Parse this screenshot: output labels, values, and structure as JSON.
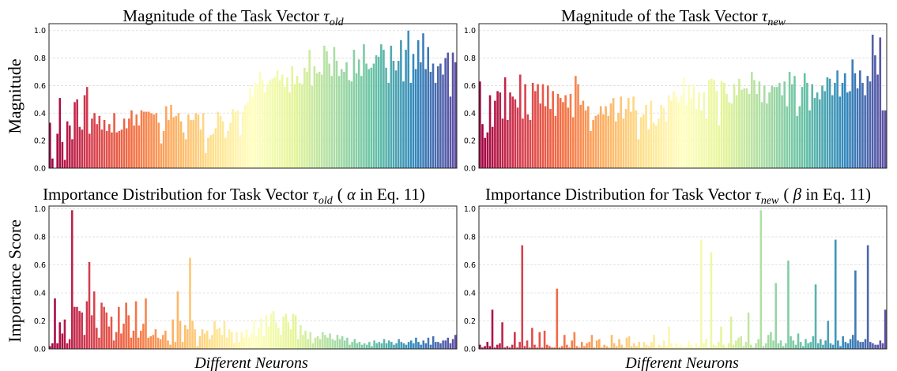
{
  "chart_data": [
    {
      "type": "bar",
      "title": "Magnitude of the Task Vector",
      "title_symbol": "τ",
      "title_subscript": "old",
      "xlabel": "",
      "ylabel": "Magnitude",
      "ylim": [
        0,
        1.05
      ],
      "yticks": [
        "0.0",
        "0.2",
        "0.4",
        "0.6",
        "0.8",
        "1.0"
      ],
      "grid": true,
      "colormap": "Spectral",
      "values": [
        0.33,
        0.07,
        0,
        0.25,
        0.51,
        0.19,
        0.06,
        0.34,
        0.31,
        0.21,
        0.48,
        0.5,
        0.3,
        0.28,
        0.53,
        0.59,
        0.25,
        0.36,
        0.4,
        0.32,
        0.38,
        0.28,
        0.35,
        0.27,
        0.32,
        0.26,
        0.4,
        0.26,
        0.27,
        0.28,
        0.36,
        0.29,
        0.36,
        0.42,
        0.31,
        0.39,
        0.31,
        0.42,
        0.41,
        0.41,
        0.41,
        0.4,
        0.39,
        0.4,
        0.33,
        0.18,
        0.27,
        0.45,
        0.35,
        0.46,
        0.37,
        0.38,
        0.4,
        0.34,
        0.26,
        0.21,
        0.39,
        0.35,
        0.35,
        0.4,
        0.39,
        0.28,
        0.4,
        0.11,
        0.22,
        0.24,
        0.25,
        0.29,
        0.41,
        0.38,
        0.34,
        0.22,
        0.27,
        0.33,
        0.43,
        0.41,
        0.42,
        0.24,
        0.41,
        0.46,
        0.48,
        0.58,
        0.52,
        0.62,
        0.61,
        0.7,
        0.64,
        0.55,
        0.61,
        0.64,
        0.65,
        0.66,
        0.71,
        0.64,
        0.68,
        0.59,
        0.66,
        0.55,
        0.74,
        0.61,
        0.67,
        0.62,
        0.61,
        0.73,
        0.7,
        0.86,
        0.6,
        0.74,
        0.69,
        0.7,
        0.68,
        0.89,
        0.85,
        0.76,
        0.67,
        0.88,
        0.78,
        0.67,
        0.72,
        0.7,
        0.77,
        0.64,
        0.63,
        0.86,
        0.69,
        0.79,
        0.67,
        0.9,
        0.76,
        0.72,
        0.73,
        0.76,
        0.82,
        0.81,
        0.9,
        0.86,
        0.73,
        0.62,
        0.89,
        0.78,
        0.71,
        0.78,
        0.93,
        0.63,
        0.86,
        1.0,
        0.62,
        0.83,
        0.72,
        0.93,
        0.77,
        0.98,
        0.72,
        0.88,
        0.7,
        0.76,
        0.62,
        0.74,
        0.76,
        0.68,
        0.8,
        0.84,
        0.52,
        0.84,
        0.77
      ]
    },
    {
      "type": "bar",
      "title": "Magnitude of the Task Vector",
      "title_symbol": "τ",
      "title_subscript": "new",
      "xlabel": "",
      "ylabel": "",
      "ylim": [
        0,
        1.05
      ],
      "yticks": [
        "0.0",
        "0.2",
        "0.4",
        "0.6",
        "0.8",
        "1.0"
      ],
      "grid": true,
      "colormap": "Spectral",
      "values": [
        0.63,
        0.32,
        0.22,
        0.26,
        0.53,
        0.3,
        0.49,
        0.56,
        0.55,
        0.36,
        0.66,
        0.35,
        0.55,
        0.52,
        0.5,
        0.44,
        0.68,
        0.36,
        0.61,
        0.39,
        0.35,
        0.62,
        0.56,
        0.61,
        0.47,
        0.61,
        0.45,
        0.6,
        0.43,
        0.56,
        0.38,
        0.54,
        0.51,
        0.48,
        0.53,
        0.44,
        0.54,
        0.37,
        0.67,
        0.61,
        0.46,
        0.49,
        0.42,
        0.45,
        0.27,
        0.35,
        0.38,
        0.39,
        0.45,
        0.39,
        0.45,
        0.38,
        0.47,
        0.51,
        0.34,
        0.4,
        0.52,
        0.36,
        0.43,
        0.51,
        0.41,
        0.52,
        0.42,
        0.21,
        0.37,
        0.39,
        0.46,
        0.28,
        0.49,
        0.33,
        0.31,
        0.36,
        0.46,
        0.44,
        0.34,
        0.53,
        0.49,
        0.56,
        0.52,
        0.48,
        0.53,
        0.66,
        0.46,
        0.6,
        0.51,
        0.61,
        0.43,
        0.55,
        0.42,
        0.55,
        0.36,
        0.64,
        0.65,
        0.64,
        0.56,
        0.31,
        0.63,
        0.62,
        0.54,
        0.48,
        0.47,
        0.61,
        0.53,
        0.65,
        0.57,
        0.58,
        0.58,
        0.54,
        0.7,
        0.64,
        0.54,
        0.63,
        0.48,
        0.6,
        0.47,
        0.55,
        0.6,
        0.59,
        0.59,
        0.62,
        0.53,
        0.63,
        0.45,
        0.7,
        0.61,
        0.67,
        0.38,
        0.45,
        0.59,
        0.69,
        0.62,
        0.42,
        0.61,
        0.51,
        0.55,
        0.5,
        0.6,
        0.56,
        0.66,
        0.65,
        0.53,
        0.62,
        0.71,
        0.52,
        0.62,
        0.69,
        0.55,
        0.56,
        0.79,
        0.69,
        0.58,
        0.71,
        0.62,
        0.53,
        0.67,
        0.63,
        0.97,
        0.82,
        0.68,
        0.95,
        0.42,
        0.42
      ]
    },
    {
      "type": "bar",
      "title": "Importance Distribution for Task Vector",
      "title_symbol": "τ",
      "title_subscript": "old",
      "title_suffix_open": "(",
      "title_greek": "α",
      "title_suffix_rest": "in Eq. 11)",
      "xlabel": "Different Neurons",
      "ylabel": "Importance Score",
      "ylim": [
        0,
        1.02
      ],
      "yticks": [
        "0.0",
        "0.2",
        "0.4",
        "0.6",
        "0.8",
        "1.0"
      ],
      "grid": true,
      "colormap": "Spectral",
      "values": [
        0.02,
        0.04,
        0.36,
        0.04,
        0.19,
        0.11,
        0.21,
        0.04,
        0.07,
        0.99,
        0.3,
        0.3,
        0.27,
        0.26,
        0.1,
        0.34,
        0.62,
        0.24,
        0.41,
        0.15,
        0.08,
        0.33,
        0.3,
        0.26,
        0.16,
        0.23,
        0.06,
        0.12,
        0.3,
        0.11,
        0.18,
        0.33,
        0.24,
        0.08,
        0.13,
        0.34,
        0.08,
        0.13,
        0.18,
        0.36,
        0.08,
        0.09,
        0.1,
        0.14,
        0.08,
        0.07,
        0.1,
        0.13,
        0.06,
        0.03,
        0.21,
        0.05,
        0.41,
        0.2,
        0.05,
        0.17,
        0.14,
        0.65,
        0.2,
        0.14,
        0.02,
        0.09,
        0.14,
        0.11,
        0.13,
        0.07,
        0.1,
        0.2,
        0.14,
        0.15,
        0.1,
        0.2,
        0.08,
        0.14,
        0.12,
        0.04,
        0.12,
        0.05,
        0.12,
        0.08,
        0.14,
        0.08,
        0.11,
        0.2,
        0.09,
        0.15,
        0.22,
        0.09,
        0.24,
        0.16,
        0.25,
        0.27,
        0.19,
        0.15,
        0.1,
        0.23,
        0.25,
        0.19,
        0.14,
        0.25,
        0.24,
        0.07,
        0.17,
        0.1,
        0.13,
        0.07,
        0.12,
        0.04,
        0.08,
        0.09,
        0.07,
        0.12,
        0.1,
        0.08,
        0.11,
        0.07,
        0.06,
        0.1,
        0.07,
        0.09,
        0.06,
        0.08,
        0.03,
        0.05,
        0.07,
        0.04,
        0.05,
        0.03,
        0.04,
        0.03,
        0.05,
        0.02,
        0.06,
        0.04,
        0.05,
        0.04,
        0.07,
        0.04,
        0.06,
        0.05,
        0.03,
        0.04,
        0.07,
        0.05,
        0.04,
        0.03,
        0.05,
        0.06,
        0.04,
        0.08,
        0.05,
        0.03,
        0.06,
        0.04,
        0.08,
        0.03,
        0.09,
        0.05,
        0.05,
        0.04,
        0.06,
        0.06,
        0.08,
        0.04,
        0.07,
        0.1
      ]
    },
    {
      "type": "bar",
      "title": "Importance Distribution for Task Vector",
      "title_symbol": "τ",
      "title_subscript": "new",
      "title_suffix_open": "(",
      "title_greek": "β",
      "title_suffix_rest": "in Eq. 11)",
      "xlabel": "Different Neurons",
      "ylabel": "",
      "ylim": [
        0,
        1.02
      ],
      "yticks": [
        "0.0",
        "0.2",
        "0.4",
        "0.6",
        "0.8",
        "1.0"
      ],
      "grid": true,
      "colormap": "Spectral",
      "values": [
        0.03,
        0.01,
        0.02,
        0.05,
        0.02,
        0.28,
        0.01,
        0.03,
        0.04,
        0.19,
        0.01,
        0.02,
        0.01,
        0.03,
        0.12,
        0.01,
        0.05,
        0.74,
        0.02,
        0.06,
        0.01,
        0.15,
        0.03,
        0.01,
        0.12,
        0.01,
        0.13,
        0.03,
        0.02,
        0.01,
        0.01,
        0.43,
        0.01,
        0.02,
        0.1,
        0.03,
        0.01,
        0.06,
        0.12,
        0.02,
        0.01,
        0.05,
        0.02,
        0.04,
        0.05,
        0.1,
        0.01,
        0.06,
        0.07,
        0.01,
        0.03,
        0.02,
        0.01,
        0.1,
        0.04,
        0.02,
        0.07,
        0.03,
        0.01,
        0.08,
        0.09,
        0.02,
        0.04,
        0.02,
        0.05,
        0.01,
        0.05,
        0.03,
        0.02,
        0.05,
        0.1,
        0.01,
        0.03,
        0.02,
        0.06,
        0.02,
        0.16,
        0.04,
        0.01,
        0.04,
        0.02,
        0.03,
        0.01,
        0.02,
        0.06,
        0.03,
        0.01,
        0.04,
        0.02,
        0.78,
        0.04,
        0.07,
        0.01,
        0.69,
        0.03,
        0.02,
        0.05,
        0.16,
        0.03,
        0.01,
        0.04,
        0.23,
        0.03,
        0.06,
        0.08,
        0.09,
        0.02,
        0.05,
        0.26,
        0.03,
        0.01,
        0.04,
        0.07,
        0.99,
        0.02,
        0.04,
        0.1,
        0.12,
        0.06,
        0.47,
        0.04,
        0.06,
        0.02,
        0.04,
        0.63,
        0.09,
        0.06,
        0.03,
        0.11,
        0.05,
        0.02,
        0.07,
        0.04,
        0.05,
        0.09,
        0.46,
        0.04,
        0.07,
        0.03,
        0.06,
        0.2,
        0.04,
        0.03,
        0.78,
        0.06,
        0.02,
        0.09,
        0.05,
        0.04,
        0.07,
        0.1,
        0.56,
        0.06,
        0.05,
        0.05,
        0.07,
        0.74,
        0.05,
        0.04,
        0.03,
        0.03,
        0.06,
        0.04,
        0.28
      ]
    }
  ]
}
